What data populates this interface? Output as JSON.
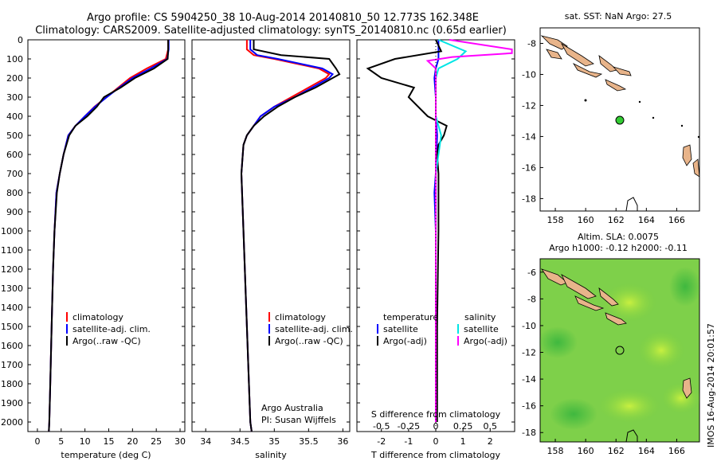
{
  "header": {
    "line1": "Argo profile: CS 5904250_38 10-Aug-2014 20140810_50 12.773S 162.348E",
    "line2": "Climatology: CARS2009. Satellite-adjusted climatology: synTS_20140810.nc (0.65d earlier)"
  },
  "depth_ticks": [
    "0",
    "100",
    "200",
    "300",
    "400",
    "500",
    "600",
    "700",
    "800",
    "900",
    "1000",
    "1100",
    "1200",
    "1300",
    "1400",
    "1500",
    "1600",
    "1700",
    "1800",
    "1900",
    "2000"
  ],
  "colors": {
    "climatology": "#ff0000",
    "satellite": "#0000ff",
    "argo": "#000000",
    "salinity_sat": "#00e5e5",
    "salinity_argo": "#ff00ff"
  },
  "temp_panel": {
    "xlabel": "temperature (deg C)",
    "xticks": [
      "0",
      "5",
      "10",
      "15",
      "20",
      "25",
      "30"
    ],
    "legend": [
      "climatology",
      "satellite-adj. clim.",
      "Argo(..raw -QC)"
    ]
  },
  "sal_panel": {
    "xlabel": "salinity",
    "xticks": [
      "34",
      "34.5",
      "35",
      "35.5",
      "36"
    ],
    "legend": [
      "climatology",
      "satellite-adj. clim.",
      "Argo(..raw -QC)"
    ],
    "credit1": "Argo Australia",
    "credit2": "PI: Susan Wijffels"
  },
  "diff_panel": {
    "xlabel": "T difference from climatology",
    "top_label": "S difference from climatology",
    "xticks_bottom": [
      "-2",
      "-1",
      "0",
      "1",
      "2"
    ],
    "xticks_top": [
      "-0.5",
      "-0.25",
      "0",
      "0.25",
      "0.5"
    ],
    "legend_temp_title": "temperature",
    "legend_sal_title": "salinity",
    "legend_temp": [
      "satellite",
      "Argo(-adj)"
    ],
    "legend_sal": [
      "satellite",
      "Argo(-adj)"
    ]
  },
  "map_top": {
    "title": "sat. SST: NaN Argo: 27.5",
    "yticks": [
      "-8",
      "-10",
      "-12",
      "-14",
      "-16",
      "-18"
    ],
    "xticks": [
      "158",
      "160",
      "162",
      "164",
      "166"
    ]
  },
  "map_bottom": {
    "title1": "Altim. SLA: 0.0075",
    "title2": "Argo h1000: -0.12 h2000: -0.11",
    "yticks": [
      "-6",
      "-8",
      "-10",
      "-12",
      "-14",
      "-16",
      "-18"
    ],
    "xticks": [
      "158",
      "160",
      "162",
      "164",
      "166"
    ]
  },
  "side_stamp": "IMOS 16-Aug-2014 20:01:57",
  "chart_data": [
    {
      "type": "line",
      "title": "",
      "xlabel": "temperature (deg C)",
      "ylabel": "",
      "xlim": [
        -2,
        31
      ],
      "ylim": [
        2050,
        0
      ],
      "series": [
        {
          "name": "climatology",
          "depth": [
            0,
            50,
            100,
            150,
            200,
            250,
            300,
            350,
            400,
            450,
            500,
            600,
            700,
            800,
            1000,
            1200,
            1500,
            1800,
            2000,
            2050
          ],
          "values": [
            27.5,
            27.5,
            27.0,
            23.0,
            19.5,
            17.0,
            14.5,
            12.0,
            10.0,
            8.0,
            6.5,
            5.5,
            4.7,
            4.0,
            3.6,
            3.3,
            3.0,
            2.7,
            2.5,
            2.4
          ]
        },
        {
          "name": "satellite-adj. clim.",
          "depth": [
            0,
            50,
            100,
            150,
            200,
            250,
            300,
            350,
            400,
            450,
            500,
            600,
            700,
            800,
            1000,
            1200,
            1500,
            1800,
            2000,
            2050
          ],
          "values": [
            27.6,
            27.6,
            27.3,
            23.8,
            20.0,
            17.2,
            14.6,
            12.1,
            10.0,
            8.0,
            6.5,
            5.5,
            4.7,
            4.0,
            3.6,
            3.3,
            3.0,
            2.7,
            2.5,
            2.4
          ]
        },
        {
          "name": "Argo(..raw -QC)",
          "depth": [
            0,
            50,
            100,
            150,
            200,
            250,
            300,
            350,
            400,
            450,
            500,
            600,
            700,
            800,
            1000,
            1200,
            1500,
            1800,
            2000,
            2050
          ],
          "values": [
            27.5,
            27.5,
            27.4,
            24.5,
            20.5,
            17.5,
            14.0,
            12.5,
            10.5,
            8.0,
            6.7,
            5.5,
            4.7,
            4.1,
            3.6,
            3.3,
            3.0,
            2.7,
            2.5,
            2.4
          ]
        }
      ]
    },
    {
      "type": "line",
      "title": "",
      "xlabel": "salinity",
      "ylabel": "",
      "xlim": [
        33.8,
        36.1
      ],
      "ylim": [
        2050,
        0
      ],
      "series": [
        {
          "name": "climatology",
          "depth": [
            0,
            50,
            80,
            100,
            150,
            180,
            200,
            250,
            300,
            350,
            400,
            450,
            500,
            550,
            700,
            1000,
            1500,
            2000,
            2050
          ],
          "values": [
            34.6,
            34.6,
            34.7,
            35.0,
            35.65,
            35.8,
            35.75,
            35.5,
            35.25,
            35.0,
            34.8,
            34.7,
            34.6,
            34.55,
            34.52,
            34.55,
            34.6,
            34.65,
            34.67
          ]
        },
        {
          "name": "satellite-adj. clim.",
          "depth": [
            0,
            50,
            80,
            100,
            150,
            180,
            200,
            250,
            300,
            350,
            400,
            450,
            500,
            550,
            700,
            1000,
            1500,
            2000,
            2050
          ],
          "values": [
            34.65,
            34.65,
            34.75,
            35.05,
            35.7,
            35.85,
            35.8,
            35.55,
            35.3,
            35.0,
            34.8,
            34.7,
            34.6,
            34.55,
            34.52,
            34.55,
            34.6,
            34.65,
            34.67
          ]
        },
        {
          "name": "Argo(..raw -QC)",
          "depth": [
            0,
            50,
            80,
            100,
            150,
            180,
            200,
            250,
            300,
            350,
            400,
            450,
            500,
            550,
            700,
            1000,
            1500,
            2000,
            2050
          ],
          "values": [
            34.7,
            34.7,
            35.1,
            35.8,
            35.9,
            35.95,
            35.85,
            35.6,
            35.3,
            35.05,
            34.85,
            34.7,
            34.6,
            34.55,
            34.52,
            34.55,
            34.6,
            34.65,
            34.67
          ]
        }
      ]
    },
    {
      "type": "line",
      "title": "",
      "xlabel": "T difference from climatology",
      "ylabel": "",
      "xlim": [
        -2.9,
        2.9
      ],
      "ylim": [
        2050,
        0
      ],
      "series": [
        {
          "name": "temperature satellite",
          "depth": [
            0,
            100,
            150,
            200,
            300,
            400,
            500,
            700,
            800,
            1000,
            1500,
            2000
          ],
          "values": [
            0.1,
            0.1,
            0.0,
            -0.05,
            0.0,
            0.0,
            0.05,
            0.0,
            -0.05,
            0.0,
            0.0,
            0.0
          ]
        },
        {
          "name": "temperature Argo(-adj)",
          "depth": [
            0,
            60,
            100,
            150,
            200,
            250,
            300,
            400,
            450,
            500,
            550,
            600,
            700,
            800,
            1000,
            1500,
            2000
          ],
          "values": [
            0.0,
            0.2,
            -1.5,
            -2.5,
            -2.0,
            -0.8,
            -1.0,
            -0.3,
            0.4,
            0.3,
            0.1,
            0.05,
            0.1,
            0.1,
            0.1,
            0.05,
            0.05
          ]
        },
        {
          "name": "salinity satellite",
          "depth": [
            0,
            60,
            100,
            150,
            200,
            300,
            400,
            500,
            700,
            1000,
            2000
          ],
          "values": [
            0.1,
            1.1,
            0.8,
            0.1,
            0.0,
            0.0,
            0.0,
            0.2,
            0.0,
            0.0,
            0.0
          ]
        },
        {
          "name": "salinity Argo(-adj)",
          "depth": [
            0,
            50,
            70,
            90,
            110,
            150,
            200,
            300,
            500,
            1000,
            2000
          ],
          "values": [
            0.5,
            2.8,
            2.8,
            0.6,
            -0.3,
            0.0,
            0.0,
            0.0,
            0.0,
            0.0,
            0.0
          ]
        }
      ]
    }
  ]
}
